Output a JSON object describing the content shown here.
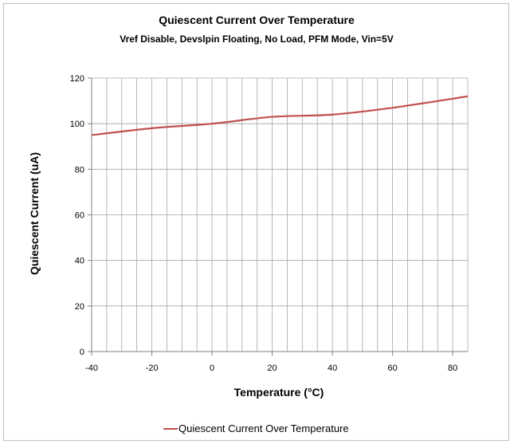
{
  "chart_data": {
    "type": "line",
    "title": "Quiescent Current Over Temperature",
    "subtitle": "Vref Disable, Devslpin Floating, No Load, PFM Mode, Vin=5V",
    "xlabel": "Temperature (°C)",
    "ylabel": "Quiescent Current (uA)",
    "xlim": [
      -40,
      85
    ],
    "ylim": [
      0,
      120
    ],
    "x_ticks": [
      -40,
      -20,
      0,
      20,
      40,
      60,
      80
    ],
    "y_ticks": [
      0,
      20,
      40,
      60,
      80,
      100,
      120
    ],
    "x_tick_labels": [
      "-40",
      "-20",
      "0",
      "20",
      "40",
      "60",
      "80"
    ],
    "y_tick_labels": [
      "0",
      "20",
      "40",
      "60",
      "80",
      "100",
      "120"
    ],
    "grid": true,
    "legend_position": "bottom",
    "series": [
      {
        "name": "Quiescent Current Over Temperature",
        "color": "#c0504d",
        "x": [
          -40,
          -20,
          0,
          20,
          40,
          60,
          85
        ],
        "y": [
          95,
          98,
          100,
          103,
          104,
          107,
          112
        ]
      }
    ]
  }
}
